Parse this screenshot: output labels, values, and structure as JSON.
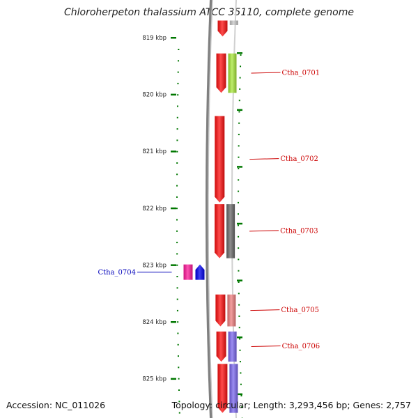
{
  "title": "Chloroherpeton thalassium ATCC 35110, complete genome",
  "footer": {
    "accession": "Accession: NC_011026",
    "summary": "Topology: circular; Length: 3,293,456 bp; Genes: 2,757"
  },
  "colors": {
    "forward_label": "#cc0000",
    "reverse_label": "#0000bb",
    "tick": "#007700",
    "backbone": "#808080"
  },
  "ticks": [
    {
      "label": "819 kbp",
      "kbp": 819
    },
    {
      "label": "820 kbp",
      "kbp": 820
    },
    {
      "label": "821 kbp",
      "kbp": 821
    },
    {
      "label": "822 kbp",
      "kbp": 822
    },
    {
      "label": "823 kbp",
      "kbp": 823
    },
    {
      "label": "824 kbp",
      "kbp": 824
    },
    {
      "label": "825 kbp",
      "kbp": 825
    }
  ],
  "genes": [
    {
      "name": "",
      "track": "cds-forward",
      "start_kbp": 818.7,
      "end_kbp": 818.98,
      "color": "#ff1111"
    },
    {
      "name": "",
      "track": "cog-forward",
      "start_kbp": 818.7,
      "end_kbp": 818.78,
      "color": "#c8c8c8"
    },
    {
      "name": "Ctha_0701",
      "track": "cds-forward",
      "start_kbp": 819.28,
      "end_kbp": 819.97,
      "color": "#ff1111"
    },
    {
      "name": "Ctha_0701-cog",
      "track": "cog-forward",
      "start_kbp": 819.28,
      "end_kbp": 819.97,
      "color": "#a8e83a"
    },
    {
      "name": "Ctha_0702",
      "track": "cds-forward",
      "start_kbp": 820.38,
      "end_kbp": 821.9,
      "color": "#ff1111"
    },
    {
      "name": "Ctha_0703",
      "track": "cds-forward",
      "start_kbp": 821.93,
      "end_kbp": 822.88,
      "color": "#ff1111"
    },
    {
      "name": "Ctha_0703-cog",
      "track": "cog-forward",
      "start_kbp": 821.93,
      "end_kbp": 822.88,
      "color": "#6a6a6a"
    },
    {
      "name": "Ctha_0704",
      "track": "cds-reverse",
      "start_kbp": 822.99,
      "end_kbp": 823.26,
      "color": "#0000ee"
    },
    {
      "name": "Ctha_0704-cog",
      "track": "cog-reverse",
      "start_kbp": 822.99,
      "end_kbp": 823.26,
      "color": "#ff1a9c"
    },
    {
      "name": "Ctha_0705",
      "track": "cds-forward",
      "start_kbp": 823.52,
      "end_kbp": 824.08,
      "color": "#ff1111"
    },
    {
      "name": "Ctha_0705-cog",
      "track": "cog-forward",
      "start_kbp": 823.52,
      "end_kbp": 824.08,
      "color": "#f08080"
    },
    {
      "name": "Ctha_0706",
      "track": "cds-forward",
      "start_kbp": 824.17,
      "end_kbp": 824.7,
      "color": "#ff1111"
    },
    {
      "name": "Ctha_0706-cog",
      "track": "cog-forward",
      "start_kbp": 824.17,
      "end_kbp": 824.7,
      "color": "#7b68ee"
    },
    {
      "name": "",
      "track": "cds-forward",
      "start_kbp": 824.74,
      "end_kbp": 825.6,
      "color": "#ff1111"
    },
    {
      "name": "",
      "track": "cog-forward",
      "start_kbp": 824.74,
      "end_kbp": 825.6,
      "color": "#7b68ee"
    }
  ],
  "gene_labels": [
    {
      "text": "Ctha_0701",
      "gene": "Ctha_0701",
      "strand": "forward"
    },
    {
      "text": "Ctha_0702",
      "gene": "Ctha_0702",
      "strand": "forward"
    },
    {
      "text": "Ctha_0703",
      "gene": "Ctha_0703",
      "strand": "forward"
    },
    {
      "text": "Ctha_0704",
      "gene": "Ctha_0704",
      "strand": "reverse"
    },
    {
      "text": "Ctha_0705",
      "gene": "Ctha_0705",
      "strand": "forward"
    },
    {
      "text": "Ctha_0706",
      "gene": "Ctha_0706",
      "strand": "forward"
    }
  ]
}
